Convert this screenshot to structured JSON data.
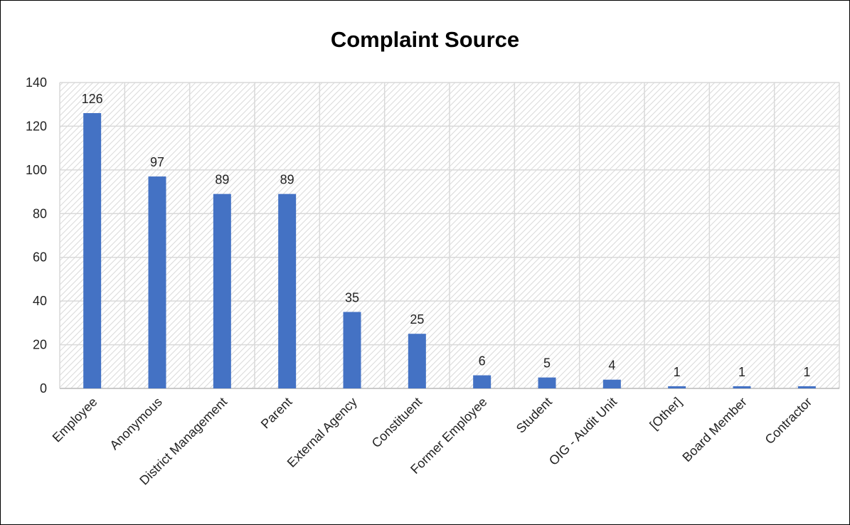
{
  "chart_data": {
    "type": "bar",
    "title": "Complaint Source",
    "xlabel": "",
    "ylabel": "",
    "categories": [
      "Employee",
      "Anonymous",
      "District Management",
      "Parent",
      "External Agency",
      "Constituent",
      "Former Employee",
      "Student",
      "OIG - Audit Unit",
      "[Other]",
      "Board Member",
      "Contractor"
    ],
    "values": [
      126,
      97,
      89,
      89,
      35,
      25,
      6,
      5,
      4,
      1,
      1,
      1
    ],
    "ylim": [
      0,
      140
    ],
    "yticks": [
      0,
      20,
      40,
      60,
      80,
      100,
      120,
      140
    ],
    "grid": true,
    "data_labels": true,
    "legend": "none",
    "bar_color": "#4472C4"
  }
}
